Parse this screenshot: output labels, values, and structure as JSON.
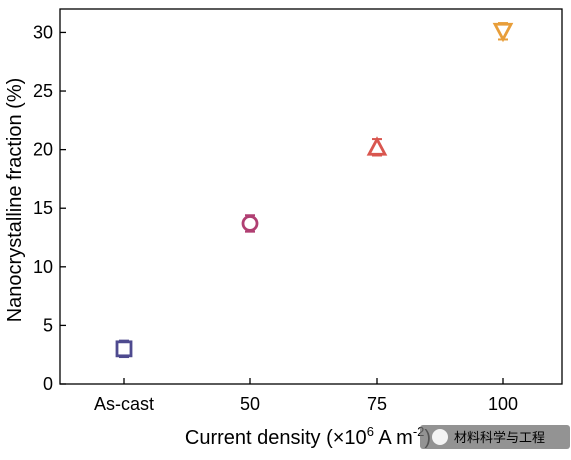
{
  "chart_data": {
    "type": "scatter",
    "title": "",
    "xlabel": "Current density (×10",
    "xlabel_sup": "6",
    "xlabel_unit": " A m",
    "xlabel_unit_sup": "-2",
    "xlabel_close": ")",
    "ylabel": "Nanocrystalline fraction (%)",
    "categories": [
      "As-cast",
      "50",
      "75",
      "100"
    ],
    "ylim": [
      0,
      32
    ],
    "yticks": [
      0,
      5,
      10,
      15,
      20,
      25,
      30
    ],
    "grid": false,
    "points": [
      {
        "x": "As-cast",
        "y": 3.0,
        "err": 0.7,
        "marker": "square",
        "color": "#4e4a8f"
      },
      {
        "x": "50",
        "y": 13.7,
        "err": 0.7,
        "marker": "circle",
        "color": "#b03f72"
      },
      {
        "x": "75",
        "y": 20.2,
        "err": 0.7,
        "marker": "triangle-up",
        "color": "#d9564f"
      },
      {
        "x": "100",
        "y": 30.1,
        "err": 0.7,
        "marker": "triangle-down",
        "color": "#e89e3a"
      }
    ]
  },
  "watermark": {
    "text": "材料科学与工程"
  }
}
